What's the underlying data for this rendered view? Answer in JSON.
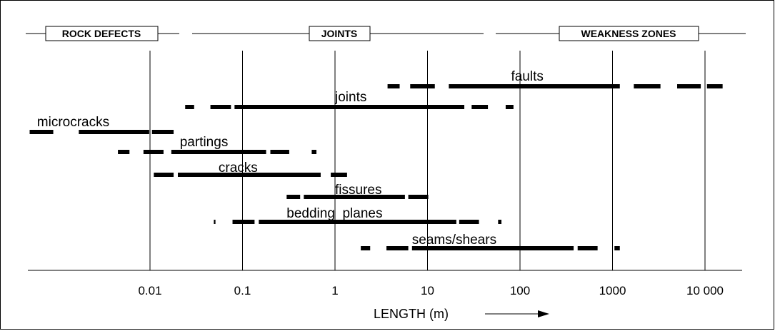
{
  "categories": {
    "rock_defects": "ROCK DEFECTS",
    "joints": "JOINTS",
    "weakness_zones": "WEAKNESS ZONES"
  },
  "axis": {
    "label": "LENGTH  (m)",
    "scale": "log",
    "ticks": [
      "0.01",
      "0.1",
      "1",
      "10",
      "100",
      "1000",
      "10 000"
    ],
    "tick_values": [
      0.01,
      0.1,
      1,
      10,
      100,
      1000,
      10000
    ],
    "arrow": "right-arrow"
  },
  "chart_data": {
    "type": "range-bars",
    "x_scale": "log",
    "x_unit": "m",
    "xlabel": "LENGTH  (m)",
    "grid": true,
    "features": [
      {
        "name": "faults",
        "segments": [
          {
            "from": 3.7,
            "to": 5.0,
            "style": "dash"
          },
          {
            "from": 6.5,
            "to": 12.0,
            "style": "dash"
          },
          {
            "from": 17.0,
            "to": 1200.0,
            "style": "solid"
          },
          {
            "from": 1700.0,
            "to": 3300.0,
            "style": "dash"
          },
          {
            "from": 5000.0,
            "to": 9000.0,
            "style": "dash"
          },
          {
            "from": 10500.0,
            "to": 15500.0,
            "style": "dash"
          }
        ]
      },
      {
        "name": "joints",
        "segments": [
          {
            "from": 0.024,
            "to": 0.03,
            "style": "dash"
          },
          {
            "from": 0.045,
            "to": 0.075,
            "style": "dash"
          },
          {
            "from": 0.082,
            "to": 25.0,
            "style": "solid"
          },
          {
            "from": 30.0,
            "to": 45.0,
            "style": "dash"
          },
          {
            "from": 70.0,
            "to": 85.0,
            "style": "dash"
          }
        ]
      },
      {
        "name": "microcracks",
        "segments": [
          {
            "from": 0.0005,
            "to": 0.0009,
            "style": "dash"
          },
          {
            "from": 0.0017,
            "to": 0.0098,
            "style": "solid"
          },
          {
            "from": 0.0105,
            "to": 0.018,
            "style": "dash"
          }
        ]
      },
      {
        "name": "partings",
        "segments": [
          {
            "from": 0.0045,
            "to": 0.006,
            "style": "dash"
          },
          {
            "from": 0.0085,
            "to": 0.014,
            "style": "dash"
          },
          {
            "from": 0.017,
            "to": 0.18,
            "style": "solid"
          },
          {
            "from": 0.2,
            "to": 0.32,
            "style": "dash"
          },
          {
            "from": 0.56,
            "to": 0.63,
            "style": "dash"
          }
        ]
      },
      {
        "name": "cracks",
        "segments": [
          {
            "from": 0.011,
            "to": 0.018,
            "style": "dash"
          },
          {
            "from": 0.02,
            "to": 0.7,
            "style": "solid"
          },
          {
            "from": 0.9,
            "to": 1.35,
            "style": "dash"
          }
        ]
      },
      {
        "name": "fissures",
        "segments": [
          {
            "from": 0.3,
            "to": 0.42,
            "style": "dash"
          },
          {
            "from": 0.46,
            "to": 5.7,
            "style": "solid"
          },
          {
            "from": 6.2,
            "to": 10.2,
            "style": "dash"
          }
        ]
      },
      {
        "name": "bedding  planes",
        "segments": [
          {
            "from": 0.049,
            "to": 0.051,
            "style": "dash"
          },
          {
            "from": 0.078,
            "to": 0.135,
            "style": "dash"
          },
          {
            "from": 0.15,
            "to": 20.5,
            "style": "solid"
          },
          {
            "from": 22.0,
            "to": 36.0,
            "style": "dash"
          },
          {
            "from": 58.0,
            "to": 63.0,
            "style": "dash"
          }
        ]
      },
      {
        "name": "seams/shears",
        "segments": [
          {
            "from": 1.9,
            "to": 2.4,
            "style": "dash"
          },
          {
            "from": 3.6,
            "to": 6.2,
            "style": "dash"
          },
          {
            "from": 6.8,
            "to": 380.0,
            "style": "solid"
          },
          {
            "from": 420.0,
            "to": 690.0,
            "style": "dash"
          },
          {
            "from": 1050.0,
            "to": 1200.0,
            "style": "dash"
          }
        ]
      }
    ]
  }
}
